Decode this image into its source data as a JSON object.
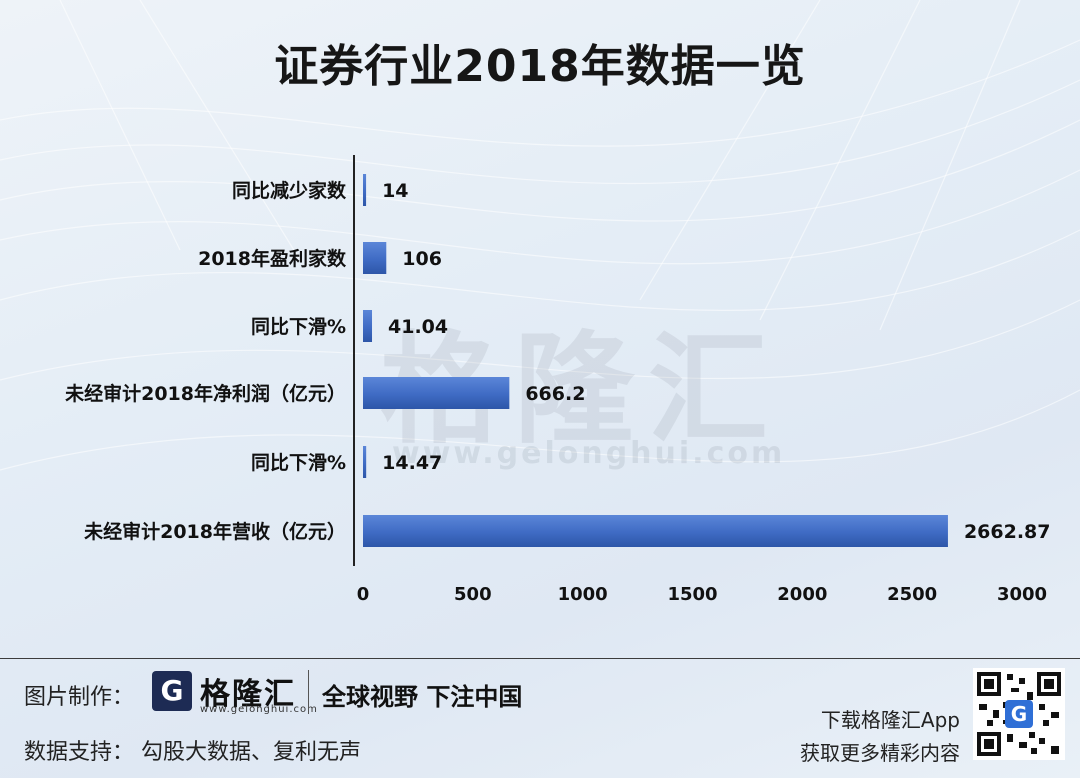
{
  "title": "证券行业2018年数据一览",
  "chart_data": {
    "type": "bar",
    "orientation": "horizontal",
    "title": "证券行业2018年数据一览",
    "categories": [
      "同比减少家数",
      "2018年盈利家数",
      "同比下滑%",
      "未经审计2018年净利润（亿元）",
      "同比下滑%",
      "未经审计2018年营收（亿元）"
    ],
    "values": [
      14,
      106,
      41.04,
      666.2,
      14.47,
      2662.87
    ],
    "value_labels": [
      "14",
      "106",
      "41.04",
      "666.2",
      "14.47",
      "2662.87"
    ],
    "xlim": [
      0,
      3000
    ],
    "xticks": [
      "0",
      "500",
      "1000",
      "1500",
      "2000",
      "2500",
      "3000"
    ],
    "xlabel": "",
    "ylabel": "",
    "grid": false,
    "legend": "none",
    "bar_color": "#3f6bc4"
  },
  "watermark": {
    "text": "格隆汇",
    "url": "www.gelonghui.com"
  },
  "footer": {
    "made_by_label": "图片制作：",
    "brand_glyph": "G",
    "brand_name": "格隆汇",
    "brand_url": "www.gelonghui.com",
    "slogan": "全球视野 下注中国",
    "data_support": "数据支持：  勾股大数据、复利无声",
    "app_line1": "下载格隆汇App",
    "app_line2": "获取更多精彩内容"
  }
}
